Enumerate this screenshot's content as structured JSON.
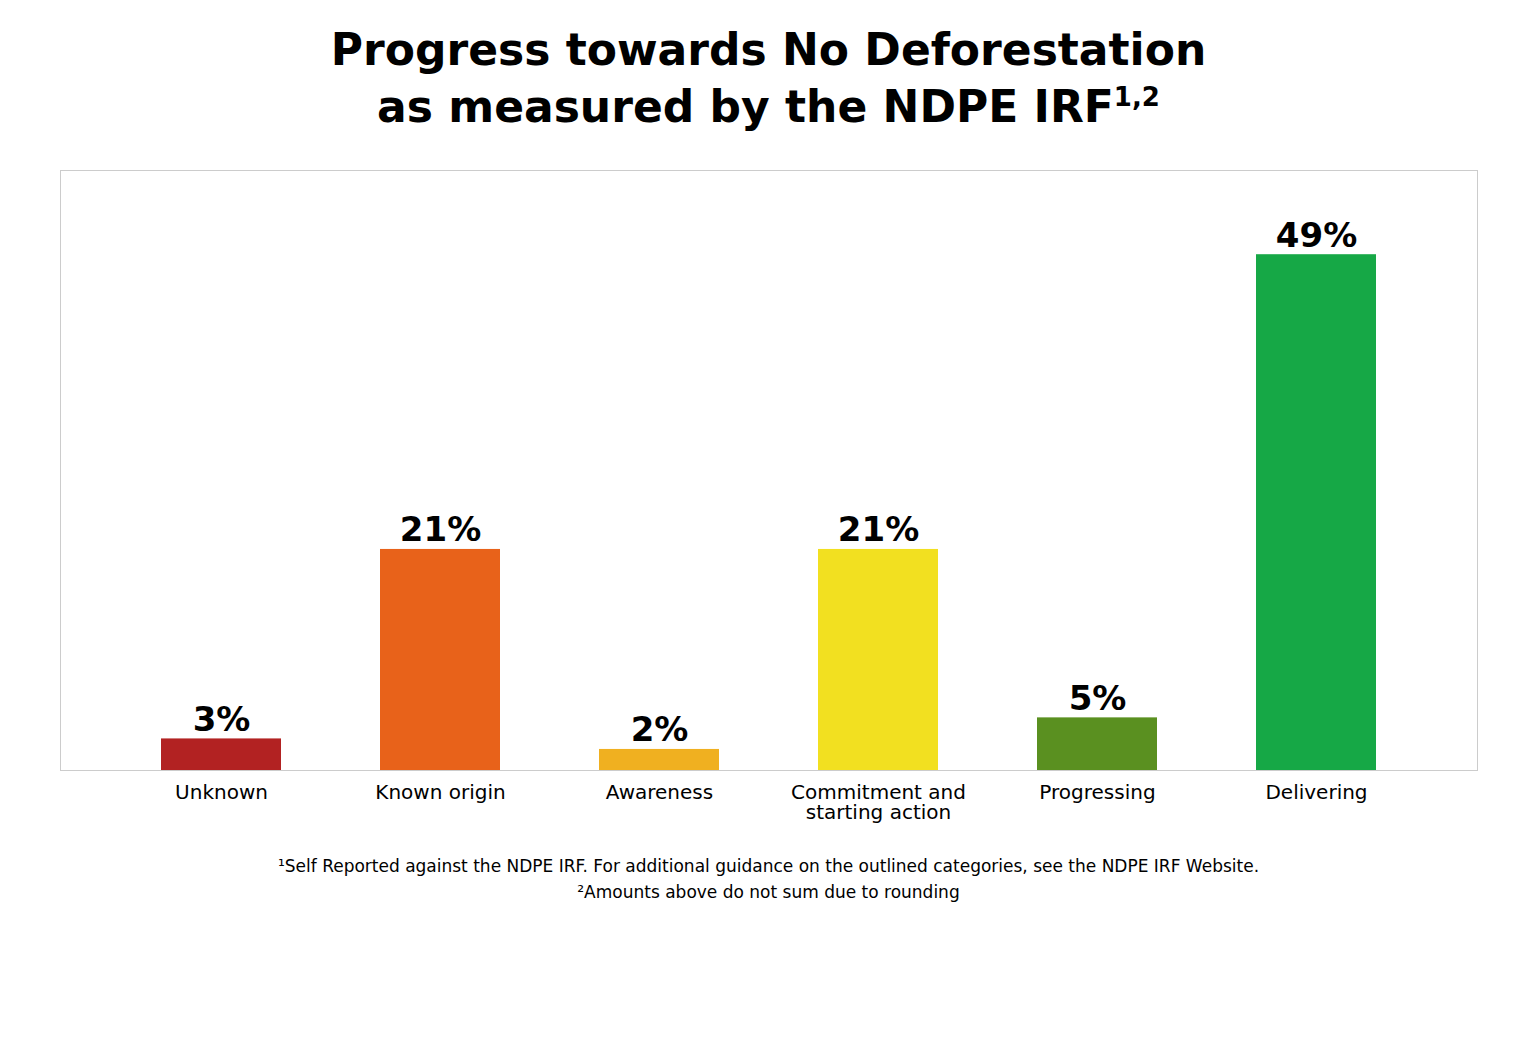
{
  "chart_data": {
    "type": "bar",
    "title": "Progress towards No Deforestation",
    "subtitle": "as measured by the NDPE IRF",
    "subtitle_superscript": "1,2",
    "footnotes": [
      "¹Self Reported against the NDPE IRF. For additional guidance on the outlined categories, see the NDPE IRF Website.",
      "²Amounts above do not sum due to rounding"
    ],
    "categories": [
      "Unknown",
      "Known origin",
      "Awareness",
      "Commitment and\nstarting action",
      "Progressing",
      "Delivering"
    ],
    "values": [
      3,
      21,
      2,
      21,
      5,
      49
    ],
    "value_labels": [
      "3%",
      "21%",
      "2%",
      "21%",
      "5%",
      "49%"
    ],
    "colors": [
      "#B22222",
      "#E8621A",
      "#F0B020",
      "#F2E020",
      "#5A9020",
      "#16A846"
    ],
    "ylim": [
      0,
      57
    ],
    "data_labels": true,
    "tick_labels": "x",
    "grid": false
  }
}
